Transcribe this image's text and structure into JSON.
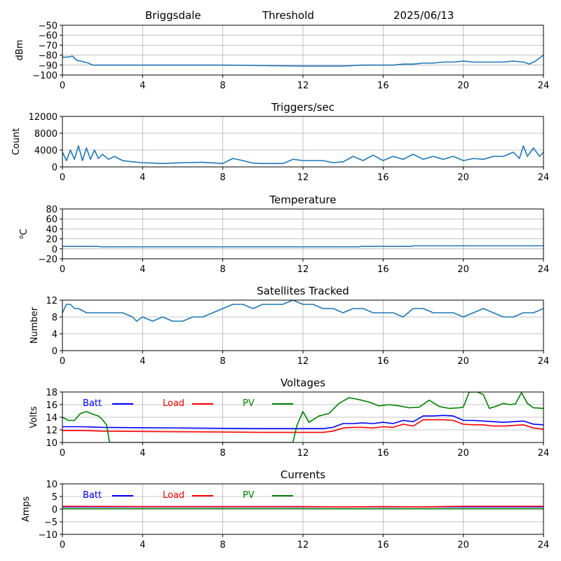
{
  "header": {
    "station": "Briggsdale",
    "mode": "Threshold",
    "date": "2025/06/13"
  },
  "chart_data": [
    {
      "type": "line",
      "id": "signal",
      "title": "",
      "xlabel": "",
      "ylabel": "dBm",
      "xlim": [
        0,
        24
      ],
      "ylim": [
        -100,
        -50
      ],
      "xticks": [
        0,
        4,
        8,
        12,
        16,
        20,
        24
      ],
      "yticks": [
        -100,
        -90,
        -80,
        -70,
        -60,
        -50
      ],
      "grid": true,
      "series": [
        {
          "color": "#1f77b4",
          "x": [
            0,
            0.3,
            0.5,
            0.7,
            0.9,
            1.1,
            1.3,
            1.5,
            2,
            3,
            4,
            6,
            8,
            10,
            12,
            13,
            14,
            15,
            16,
            16.5,
            17,
            17.5,
            18,
            18.5,
            19,
            19.5,
            20,
            20.5,
            21,
            21.5,
            22,
            22.5,
            23,
            23.3,
            23.6,
            24
          ],
          "y": [
            -82,
            -82,
            -81,
            -85,
            -86,
            -87,
            -88,
            -90,
            -90,
            -90,
            -90,
            -90,
            -90,
            -90.5,
            -91,
            -91,
            -91,
            -90,
            -90,
            -90,
            -89,
            -89,
            -88,
            -88,
            -87,
            -87,
            -86,
            -87,
            -87,
            -87,
            -87,
            -86,
            -87,
            -89,
            -86,
            -80
          ]
        }
      ]
    },
    {
      "type": "line",
      "id": "triggers",
      "title": "Triggers/sec",
      "xlabel": "",
      "ylabel": "Count",
      "xlim": [
        0,
        24
      ],
      "ylim": [
        0,
        12000
      ],
      "xticks": [
        0,
        4,
        8,
        12,
        16,
        20,
        24
      ],
      "yticks": [
        0,
        4000,
        8000,
        12000
      ],
      "grid": true,
      "series": [
        {
          "color": "#1f77b4",
          "x": [
            0,
            0.2,
            0.4,
            0.6,
            0.8,
            1.0,
            1.2,
            1.4,
            1.6,
            1.8,
            2.0,
            2.3,
            2.6,
            3.0,
            3.5,
            4.0,
            5,
            6,
            7,
            8,
            8.5,
            9,
            9.5,
            10,
            11,
            11.5,
            12,
            13,
            13.5,
            14,
            14.5,
            15,
            15.5,
            16,
            16.5,
            17,
            17.5,
            18,
            18.5,
            19,
            19.5,
            20,
            20.5,
            21,
            21.5,
            22,
            22.5,
            22.8,
            23,
            23.2,
            23.5,
            23.8,
            24
          ],
          "y": [
            3500,
            1500,
            4000,
            1800,
            5000,
            1500,
            4500,
            1800,
            4000,
            2000,
            3000,
            1800,
            2500,
            1500,
            1200,
            1000,
            800,
            1000,
            1100,
            800,
            2000,
            1500,
            900,
            800,
            800,
            1800,
            1500,
            1500,
            1000,
            1200,
            2500,
            1500,
            2800,
            1500,
            2500,
            1800,
            3000,
            1800,
            2500,
            1800,
            2500,
            1500,
            2000,
            1800,
            2500,
            2500,
            3500,
            2000,
            5000,
            2500,
            4500,
            2500,
            3500
          ]
        }
      ]
    },
    {
      "type": "line",
      "id": "temperature",
      "title": "Temperature",
      "xlabel": "",
      "ylabel": "oC",
      "xlim": [
        0,
        24
      ],
      "ylim": [
        -20,
        80
      ],
      "xticks": [
        0,
        4,
        8,
        12,
        16,
        20,
        24
      ],
      "yticks": [
        -20,
        0,
        20,
        40,
        60,
        80
      ],
      "grid": true,
      "series": [
        {
          "color": "#1f77b4",
          "x": [
            0,
            1.8,
            1.9,
            14.8,
            14.9,
            17.4,
            17.5,
            24
          ],
          "y": [
            5,
            5,
            4,
            4,
            5,
            5,
            6,
            6
          ]
        }
      ]
    },
    {
      "type": "line",
      "id": "satellites",
      "title": "Satellites Tracked",
      "xlabel": "",
      "ylabel": "Number",
      "xlim": [
        0,
        24
      ],
      "ylim": [
        0,
        12
      ],
      "xticks": [
        0,
        4,
        8,
        12,
        16,
        20,
        24
      ],
      "yticks": [
        0,
        4,
        8,
        12
      ],
      "grid": true,
      "series": [
        {
          "color": "#1f77b4",
          "x": [
            0,
            0.1,
            0.2,
            0.4,
            0.6,
            0.8,
            1.2,
            2.0,
            2.5,
            3.0,
            3.5,
            3.7,
            4.0,
            4.5,
            5.0,
            5.5,
            6.0,
            6.5,
            7.0,
            7.5,
            8.0,
            8.5,
            9.0,
            9.5,
            10.0,
            11.0,
            11.5,
            12.0,
            12.5,
            13.0,
            13.5,
            14.0,
            14.5,
            15.0,
            15.5,
            16.0,
            16.5,
            17.0,
            17.5,
            18.0,
            18.5,
            19.0,
            19.5,
            20.0,
            20.5,
            21.0,
            21.5,
            22.0,
            22.5,
            23.0,
            23.5,
            24.0
          ],
          "y": [
            9,
            10,
            11,
            11,
            10,
            10,
            9,
            9,
            9,
            9,
            8,
            7,
            8,
            7,
            8,
            7,
            7,
            8,
            8,
            9,
            10,
            11,
            11,
            10,
            11,
            11,
            12,
            11,
            11,
            10,
            10,
            9,
            10,
            10,
            9,
            9,
            9,
            8,
            10,
            10,
            9,
            9,
            9,
            8,
            9,
            10,
            9,
            8,
            8,
            9,
            9,
            10
          ]
        }
      ]
    },
    {
      "type": "line",
      "id": "voltages",
      "title": "Voltages",
      "xlabel": "",
      "ylabel": "Volts",
      "xlim": [
        0,
        24
      ],
      "ylim": [
        10,
        18
      ],
      "xticks": [
        0,
        4,
        8,
        12,
        16,
        20,
        24
      ],
      "yticks": [
        10,
        12,
        14,
        16,
        18
      ],
      "grid": true,
      "legend": "top-left, horizontal",
      "series": [
        {
          "name": "Batt",
          "color": "#0000ff",
          "x": [
            0,
            1,
            2,
            4,
            6,
            8,
            10,
            12,
            13,
            13.5,
            14,
            14.5,
            15,
            15.5,
            16,
            16.5,
            17,
            17.5,
            18,
            18.5,
            19,
            19.5,
            20,
            20.5,
            21,
            21.5,
            22,
            22.5,
            23,
            23.5,
            24
          ],
          "y": [
            12.5,
            12.5,
            12.4,
            12.35,
            12.3,
            12.25,
            12.2,
            12.2,
            12.2,
            12.4,
            13.0,
            13.0,
            13.1,
            13.0,
            13.2,
            13.0,
            13.5,
            13.3,
            14.2,
            14.2,
            14.3,
            14.2,
            13.5,
            13.5,
            13.4,
            13.3,
            13.2,
            13.3,
            13.4,
            12.9,
            12.8
          ]
        },
        {
          "name": "Load",
          "color": "#ff0000",
          "x": [
            0,
            1,
            2,
            4,
            6,
            8,
            10,
            12,
            13,
            13.5,
            14,
            14.5,
            15,
            15.5,
            16,
            16.5,
            17,
            17.5,
            18,
            18.5,
            19,
            19.5,
            20,
            20.5,
            21,
            21.5,
            22,
            22.5,
            23,
            23.5,
            24
          ],
          "y": [
            11.9,
            11.9,
            11.8,
            11.75,
            11.7,
            11.65,
            11.6,
            11.6,
            11.6,
            11.8,
            12.3,
            12.4,
            12.4,
            12.3,
            12.5,
            12.4,
            12.9,
            12.6,
            13.6,
            13.6,
            13.6,
            13.5,
            12.9,
            12.8,
            12.8,
            12.6,
            12.6,
            12.7,
            12.8,
            12.3,
            12.1
          ]
        },
        {
          "name": "PV",
          "color": "#008000",
          "x": [
            0,
            0.3,
            0.6,
            0.9,
            1.2,
            1.5,
            1.8,
            2.0,
            2.2,
            2.35,
            11.5,
            11.7,
            12.0,
            12.3,
            12.8,
            13.3,
            13.8,
            14.3,
            14.8,
            15.3,
            15.8,
            16.3,
            16.8,
            17.3,
            17.8,
            18.3,
            18.8,
            19.3,
            19.8,
            20.0,
            20.3,
            20.7,
            21.0,
            21.3,
            21.6,
            22.0,
            22.3,
            22.6,
            22.9,
            23.2,
            23.5,
            24.0
          ],
          "y": [
            14.0,
            13.5,
            13.5,
            14.6,
            14.9,
            14.5,
            14.2,
            13.6,
            12.8,
            10.0,
            10.0,
            12.7,
            14.9,
            13.2,
            14.2,
            14.6,
            16.2,
            17.1,
            16.8,
            16.4,
            15.8,
            16.0,
            15.8,
            15.5,
            15.6,
            16.7,
            15.7,
            15.4,
            15.5,
            15.6,
            18.0,
            18.0,
            17.6,
            15.4,
            15.7,
            16.2,
            16.0,
            16.1,
            17.9,
            16.2,
            15.5,
            15.4
          ]
        }
      ]
    },
    {
      "type": "line",
      "id": "currents",
      "title": "Currents",
      "xlabel": "",
      "ylabel": "Amps",
      "xlim": [
        0,
        24
      ],
      "ylim": [
        -10,
        10
      ],
      "xticks": [
        0,
        4,
        8,
        12,
        16,
        20,
        24
      ],
      "yticks": [
        -10,
        -5,
        0,
        5,
        10
      ],
      "grid": true,
      "legend": "top-left, horizontal",
      "series": [
        {
          "name": "Batt",
          "color": "#0000ff",
          "x": [
            0,
            24
          ],
          "y": [
            0.9,
            0.9
          ]
        },
        {
          "name": "Load",
          "color": "#ff0000",
          "x": [
            0,
            4,
            8,
            12,
            14,
            16,
            18,
            20,
            22,
            24
          ],
          "y": [
            1.1,
            1.0,
            1.0,
            1.0,
            0.9,
            1.0,
            0.9,
            1.1,
            1.1,
            1.1
          ]
        },
        {
          "name": "PV",
          "color": "#008000",
          "x": [
            0,
            24
          ],
          "y": [
            0.1,
            0.1
          ]
        }
      ]
    }
  ]
}
